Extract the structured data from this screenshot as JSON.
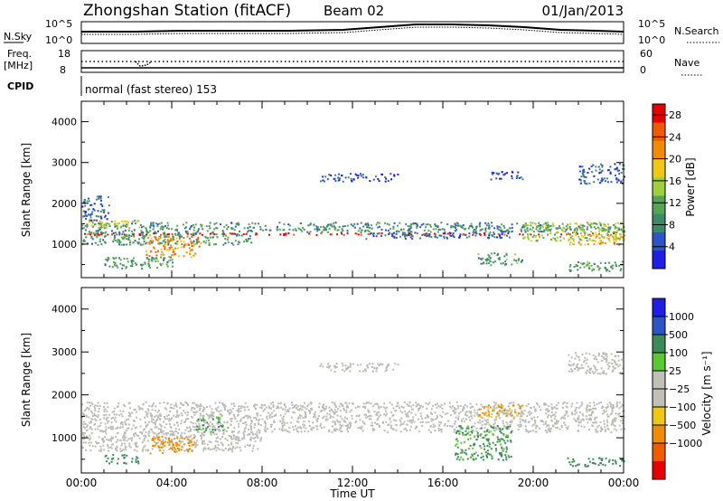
{
  "header": {
    "station": "Zhongshan Station (fitACF)",
    "beam": "Beam 02",
    "date": "01/Jan/2013"
  },
  "top_panels": {
    "nsky_label": "N.Sky",
    "nsearch_label": "N.Search",
    "noise_ticks": [
      "10^5",
      "10^0"
    ],
    "freq_label_1": "Freq.",
    "freq_label_2": "[MHz]",
    "freq_ticks": [
      "18",
      "8"
    ],
    "nave_label": "Nave",
    "nave_ticks": [
      "60",
      "0"
    ],
    "cpid_label": "CPID",
    "cpid_text": "normal (fast stereo) 153"
  },
  "colors": {
    "power_scale": [
      "#1e1ee6",
      "#2c55c8",
      "#3c8a6a",
      "#56a456",
      "#9ecf3c",
      "#f0c814",
      "#f08c00",
      "#f05a00",
      "#e60000"
    ],
    "velocity_scale": [
      "#e60000",
      "#f05a00",
      "#f08c00",
      "#f0c814",
      "#c0c0b8",
      "#c0c0b8",
      "#5ac832",
      "#3c8a5a",
      "#2c55c8",
      "#1e1ee6"
    ],
    "ground_scatter": "#bcbcb4"
  },
  "chart_data": [
    {
      "type": "heatmap",
      "name": "power",
      "xlabel": "",
      "ylabel": "Slant Range [km]",
      "x_range_hours": [
        0,
        24
      ],
      "xticks": [
        "00:00",
        "04:00",
        "08:00",
        "12:00",
        "16:00",
        "20:00",
        "00:00"
      ],
      "ylim": [
        180,
        4500
      ],
      "yticks": [
        1000,
        2000,
        3000,
        4000
      ],
      "colorbar_label": "Power [dB]",
      "colorbar_ticks": [
        4,
        8,
        12,
        16,
        20,
        24,
        28
      ],
      "colorbar_range": [
        0,
        30
      ],
      "regions": [
        {
          "t": [
            0,
            24
          ],
          "r": [
            1300,
            1550
          ],
          "value": 9
        },
        {
          "t": [
            0,
            7.5
          ],
          "r": [
            1000,
            1300
          ],
          "value": 10
        },
        {
          "t": [
            0.2,
            2.6
          ],
          "r": [
            1420,
            1600
          ],
          "value": 16
        },
        {
          "t": [
            2.8,
            5.2
          ],
          "r": [
            700,
            1200
          ],
          "value": 22
        },
        {
          "t": [
            0,
            24
          ],
          "r": [
            1240,
            1290
          ],
          "value": 28
        },
        {
          "t": [
            12.5,
            19
          ],
          "r": [
            1150,
            1300
          ],
          "value": 6
        },
        {
          "t": [
            19.5,
            24
          ],
          "r": [
            1100,
            1550
          ],
          "value": 14
        },
        {
          "t": [
            21.5,
            24
          ],
          "r": [
            1000,
            1280
          ],
          "value": 20
        },
        {
          "t": [
            0,
            1.2
          ],
          "r": [
            1600,
            2200
          ],
          "value": 6
        },
        {
          "t": [
            10.5,
            14
          ],
          "r": [
            2550,
            2750
          ],
          "value": 4
        },
        {
          "t": [
            18,
            19.5
          ],
          "r": [
            2600,
            2800
          ],
          "value": 4
        },
        {
          "t": [
            22,
            24
          ],
          "r": [
            2500,
            3000
          ],
          "value": 5
        },
        {
          "t": [
            17.5,
            19.5
          ],
          "r": [
            500,
            800
          ],
          "value": 10
        },
        {
          "t": [
            21.5,
            24
          ],
          "r": [
            350,
            600
          ],
          "value": 11
        },
        {
          "t": [
            1,
            4
          ],
          "r": [
            420,
            700
          ],
          "value": 10
        }
      ]
    },
    {
      "type": "heatmap",
      "name": "velocity",
      "xlabel": "Time UT",
      "ylabel": "Slant Range [km]",
      "x_range_hours": [
        0,
        24
      ],
      "xticks": [
        "00:00",
        "04:00",
        "08:00",
        "12:00",
        "16:00",
        "20:00",
        "00:00"
      ],
      "ylim": [
        180,
        4500
      ],
      "yticks": [
        1000,
        2000,
        3000,
        4000
      ],
      "colorbar_label": "Velocity [m s⁻¹]",
      "colorbar_ticks": [
        "1000",
        "500",
        "100",
        "25",
        "−25",
        "−100",
        "−500",
        "−1000"
      ],
      "regions": [
        {
          "t": [
            0,
            24
          ],
          "r": [
            1150,
            1850
          ],
          "value": "ground"
        },
        {
          "t": [
            0,
            8
          ],
          "r": [
            700,
            1150
          ],
          "value": "ground"
        },
        {
          "t": [
            10.5,
            14
          ],
          "r": [
            2550,
            2750
          ],
          "value": "ground"
        },
        {
          "t": [
            21.5,
            24
          ],
          "r": [
            2500,
            3000
          ],
          "value": "ground"
        },
        {
          "t": [
            3,
            5
          ],
          "r": [
            650,
            1050
          ],
          "value": -300
        },
        {
          "t": [
            1,
            2.5
          ],
          "r": [
            420,
            620
          ],
          "value": 300
        },
        {
          "t": [
            16.5,
            19
          ],
          "r": [
            500,
            1300
          ],
          "value": 120
        },
        {
          "t": [
            21.5,
            24
          ],
          "r": [
            350,
            550
          ],
          "value": 300
        },
        {
          "t": [
            5,
            6.5
          ],
          "r": [
            1150,
            1500
          ],
          "value": 90
        },
        {
          "t": [
            17.5,
            19.5
          ],
          "r": [
            1500,
            1800
          ],
          "value": -150
        }
      ]
    }
  ]
}
